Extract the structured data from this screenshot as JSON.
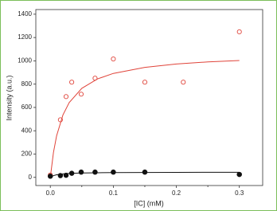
{
  "chart_data": {
    "type": "scatter",
    "x_label": "[IC] (mM)",
    "y_label": "Intensity (a.u.)",
    "xlim": [
      -0.023,
      0.337
    ],
    "ylim": [
      -70,
      1440
    ],
    "xticks": [
      {
        "value": 0,
        "label": "0.0"
      },
      0.1,
      0.2,
      0.3
    ],
    "xticks_minor": [
      0.05,
      0.15,
      0.25
    ],
    "yticks": [
      0,
      200,
      400,
      600,
      800,
      1000,
      1200,
      1400
    ],
    "series": [
      {
        "color": "#e0443a",
        "marker": "open",
        "x": [
          0,
          0.016,
          0.025,
          0.034,
          0.049,
          0.071,
          0.1,
          0.15,
          0.211,
          0.3
        ],
        "values": [
          20,
          494,
          693,
          817,
          714,
          851,
          1016,
          817,
          817,
          1249
        ]
      },
      {
        "color": "#111111",
        "marker": "filled",
        "x": [
          0,
          0.016,
          0.025,
          0.034,
          0.049,
          0.071,
          0.1,
          0.15,
          0.3
        ],
        "values": [
          10,
          15,
          18,
          35,
          45,
          45,
          45,
          45,
          25
        ]
      }
    ],
    "fits": [
      {
        "color": "#e0443a",
        "x": [
          0,
          0.005,
          0.01,
          0.02,
          0.03,
          0.05,
          0.075,
          0.1,
          0.15,
          0.2,
          0.25,
          0.3
        ],
        "values": [
          0,
          214,
          357,
          535,
          642,
          764,
          845,
          892,
          944,
          973,
          991,
          1003
        ]
      },
      {
        "color": "#111111",
        "x": [
          0,
          0.005,
          0.01,
          0.02,
          0.03,
          0.05,
          0.075,
          0.1,
          0.15,
          0.2,
          0.25,
          0.3
        ],
        "values": [
          0,
          15,
          22.5,
          30,
          33.8,
          37.5,
          39.7,
          40.9,
          42.2,
          42.9,
          43.3,
          43.5
        ]
      }
    ]
  }
}
